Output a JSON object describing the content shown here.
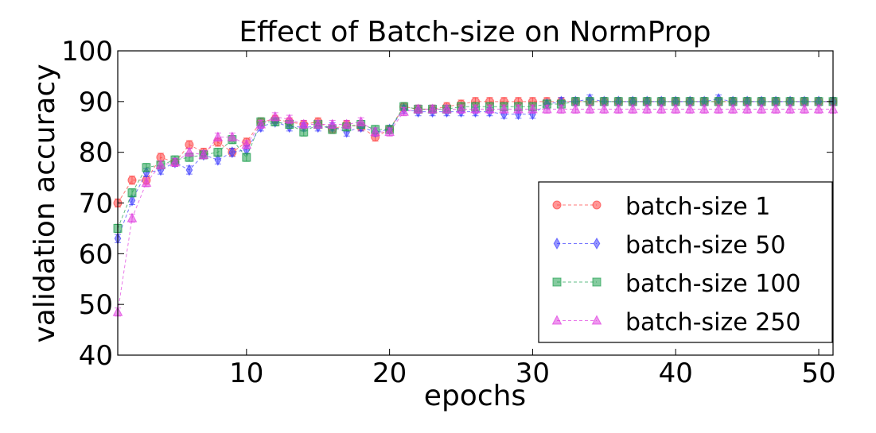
{
  "chart_data": {
    "type": "line",
    "title": "Effect of Batch-size on NormProp",
    "xlabel": "epochs",
    "ylabel": "validation accuracy",
    "xlim": [
      1,
      51
    ],
    "ylim": [
      40,
      100
    ],
    "xticks": [
      10,
      20,
      30,
      40,
      50
    ],
    "yticks": [
      40,
      50,
      60,
      70,
      80,
      90,
      100
    ],
    "grid": false,
    "legend_position": "lower-right",
    "error_bar": 0.8,
    "x": [
      1,
      2,
      3,
      4,
      5,
      6,
      7,
      8,
      9,
      10,
      11,
      12,
      13,
      14,
      15,
      16,
      17,
      18,
      19,
      20,
      21,
      22,
      23,
      24,
      25,
      26,
      27,
      28,
      29,
      30,
      31,
      32,
      33,
      34,
      35,
      36,
      37,
      38,
      39,
      40,
      41,
      42,
      43,
      44,
      45,
      46,
      47,
      48,
      49,
      50,
      51
    ],
    "series": [
      {
        "name": "batch-size 1",
        "color": "#ff4040",
        "marker": "circle",
        "values": [
          70,
          74.5,
          74.5,
          79,
          78,
          81.5,
          80,
          82,
          80,
          82,
          86,
          86.5,
          86,
          85.5,
          86,
          84.5,
          85.5,
          85,
          83,
          84.5,
          89,
          88.5,
          88.5,
          89,
          89.5,
          90,
          90,
          90,
          90,
          90,
          90,
          90,
          90,
          90,
          90,
          90,
          90,
          90,
          90,
          90,
          90,
          90,
          90,
          90,
          90,
          90,
          90,
          90,
          90,
          90,
          90
        ]
      },
      {
        "name": "batch-size 50",
        "color": "#4040ff",
        "marker": "diamond",
        "values": [
          63,
          70.5,
          76,
          76.5,
          78,
          76.5,
          79.5,
          78.5,
          80,
          80.5,
          85,
          86,
          85,
          85,
          85,
          85,
          84,
          85,
          84,
          84.5,
          88.5,
          88,
          88,
          88,
          88,
          88,
          88,
          87.5,
          87.5,
          87.5,
          89.5,
          90,
          90,
          90.5,
          90,
          90,
          90,
          90,
          90,
          90,
          90,
          90,
          90.5,
          90,
          90,
          90,
          90,
          90,
          90,
          90,
          90
        ]
      },
      {
        "name": "batch-size 100",
        "color": "#20a050",
        "marker": "square",
        "values": [
          65,
          72,
          77,
          77.5,
          78.5,
          79,
          79.5,
          80,
          82.5,
          79,
          86,
          86,
          85.5,
          84,
          85.5,
          84.5,
          85,
          85.5,
          84.5,
          84.5,
          89,
          88.5,
          88.5,
          88.5,
          89,
          89,
          89,
          89,
          89,
          89,
          89.5,
          89.5,
          90,
          90,
          90,
          90,
          90,
          90,
          90,
          90,
          90,
          90,
          90,
          90,
          90,
          90,
          90,
          90,
          90,
          90,
          90
        ]
      },
      {
        "name": "batch-size 250",
        "color": "#e040e0",
        "marker": "triangle",
        "values": [
          48.5,
          67,
          74,
          77.5,
          78,
          80,
          79.5,
          83,
          83,
          81.5,
          85.5,
          87,
          86.5,
          85.5,
          85.5,
          85.5,
          85.5,
          86,
          84,
          84,
          88,
          88.5,
          88.5,
          88.5,
          88.5,
          88.5,
          88.5,
          88.5,
          88.5,
          88.5,
          88.5,
          88.5,
          88.5,
          88.5,
          88.5,
          88.5,
          88.5,
          88.5,
          88.5,
          88.5,
          88.5,
          88.5,
          88.5,
          88.5,
          88.5,
          88.5,
          88.5,
          88.5,
          88.5,
          88.5,
          88.5
        ]
      }
    ]
  }
}
